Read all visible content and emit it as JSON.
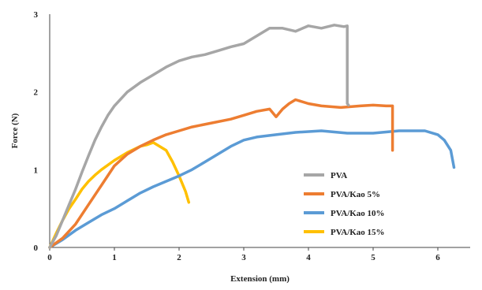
{
  "chart_data": {
    "type": "line",
    "title": "",
    "xlabel": "Extension (mm)",
    "ylabel": "Force (N)",
    "xlim": [
      0,
      6.5
    ],
    "ylim": [
      0,
      3
    ],
    "xticks": [
      "0",
      "1",
      "2",
      "3",
      "4",
      "5",
      "6"
    ],
    "yticks": [
      "0",
      "1",
      "2",
      "3"
    ],
    "grid": false,
    "legend_position": "bottom-right",
    "series": [
      {
        "name": "PVA",
        "color": "#a6a6a6",
        "x": [
          0,
          0.1,
          0.2,
          0.3,
          0.4,
          0.5,
          0.6,
          0.7,
          0.8,
          0.9,
          1.0,
          1.2,
          1.4,
          1.6,
          1.8,
          2.0,
          2.2,
          2.4,
          2.6,
          2.8,
          3.0,
          3.2,
          3.4,
          3.6,
          3.8,
          4.0,
          4.2,
          4.4,
          4.55,
          4.6,
          4.6,
          4.62
        ],
        "y": [
          0,
          0.15,
          0.35,
          0.55,
          0.75,
          0.97,
          1.18,
          1.38,
          1.55,
          1.7,
          1.82,
          2.0,
          2.12,
          2.22,
          2.32,
          2.4,
          2.45,
          2.48,
          2.53,
          2.58,
          2.62,
          2.72,
          2.82,
          2.82,
          2.78,
          2.85,
          2.82,
          2.86,
          2.84,
          2.85,
          1.85,
          1.83
        ]
      },
      {
        "name": "PVA/Kao 5%",
        "color": "#ed7d31",
        "x": [
          0,
          0.2,
          0.4,
          0.6,
          0.8,
          1.0,
          1.2,
          1.4,
          1.6,
          1.8,
          2.0,
          2.2,
          2.5,
          2.8,
          3.0,
          3.2,
          3.4,
          3.5,
          3.6,
          3.7,
          3.8,
          4.0,
          4.2,
          4.5,
          4.8,
          5.0,
          5.2,
          5.3,
          5.3
        ],
        "y": [
          0,
          0.12,
          0.3,
          0.55,
          0.8,
          1.05,
          1.2,
          1.3,
          1.38,
          1.45,
          1.5,
          1.55,
          1.6,
          1.65,
          1.7,
          1.75,
          1.78,
          1.68,
          1.78,
          1.85,
          1.9,
          1.85,
          1.82,
          1.8,
          1.82,
          1.83,
          1.82,
          1.82,
          1.25
        ]
      },
      {
        "name": "PVA/Kao 10%",
        "color": "#5b9bd5",
        "x": [
          0,
          0.2,
          0.4,
          0.6,
          0.8,
          1.0,
          1.2,
          1.4,
          1.6,
          1.8,
          2.0,
          2.2,
          2.4,
          2.6,
          2.8,
          3.0,
          3.2,
          3.5,
          3.8,
          4.2,
          4.6,
          5.0,
          5.4,
          5.8,
          6.0,
          6.1,
          6.2,
          6.25
        ],
        "y": [
          0,
          0.1,
          0.22,
          0.32,
          0.42,
          0.5,
          0.6,
          0.7,
          0.78,
          0.85,
          0.92,
          1.0,
          1.1,
          1.2,
          1.3,
          1.38,
          1.42,
          1.45,
          1.48,
          1.5,
          1.47,
          1.47,
          1.5,
          1.5,
          1.45,
          1.38,
          1.25,
          1.03
        ]
      },
      {
        "name": "PVA/Kao 15%",
        "color": "#ffc000",
        "x": [
          0,
          0.1,
          0.2,
          0.3,
          0.4,
          0.5,
          0.6,
          0.7,
          0.8,
          1.0,
          1.2,
          1.4,
          1.5,
          1.6,
          1.7,
          1.8,
          1.9,
          2.0,
          2.1,
          2.15
        ],
        "y": [
          0,
          0.18,
          0.35,
          0.5,
          0.62,
          0.75,
          0.85,
          0.93,
          1.0,
          1.12,
          1.22,
          1.3,
          1.32,
          1.35,
          1.3,
          1.25,
          1.1,
          0.92,
          0.72,
          0.58
        ]
      }
    ]
  }
}
